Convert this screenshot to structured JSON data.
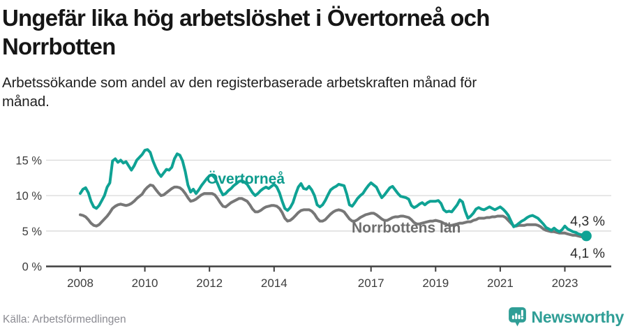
{
  "header": {
    "title": "Ungefär lika hög arbetslöshet i Övertorneå och\nNorrbotten",
    "subtitle": "Arbetssökande som andel av den registerbaserade arbetskraften månad för\nmånad."
  },
  "footer": {
    "source": "Källa: Arbetsförmedlingen",
    "brand": "Newsworthy",
    "brand_color": "#2f9e96"
  },
  "chart_data": {
    "type": "line",
    "title": "Ungefär lika hög arbetslöshet i Övertorneå och Norrbotten",
    "subtitle": "Arbetssökande som andel av den registerbaserade arbetskraften månad för månad.",
    "x_unit": "month",
    "x_start_year": 2008,
    "points_per_year": 12,
    "x_end": "2023-09",
    "xlim": [
      2008,
      2023.75
    ],
    "ylim": [
      0,
      17
    ],
    "grid": "horizontal",
    "legend": "inline-labels",
    "x_ticks": [
      {
        "value": 2008,
        "label": "2008"
      },
      {
        "value": 2010,
        "label": "2010"
      },
      {
        "value": 2012,
        "label": "2012"
      },
      {
        "value": 2014,
        "label": "2014"
      },
      {
        "value": 2017,
        "label": "2017"
      },
      {
        "value": 2019,
        "label": "2019"
      },
      {
        "value": 2021,
        "label": "2021"
      },
      {
        "value": 2023,
        "label": "2023"
      }
    ],
    "y_ticks": [
      {
        "value": 0,
        "label": "0 %"
      },
      {
        "value": 5,
        "label": "5 %"
      },
      {
        "value": 10,
        "label": "10 %"
      },
      {
        "value": 15,
        "label": "15 %"
      }
    ],
    "series": [
      {
        "name": "Övertorneå",
        "color": "#0fa294",
        "label_color": "#0d9b8d",
        "end_label": "4,3 %",
        "end_value": 4.3,
        "values": [
          10.3,
          10.9,
          11.1,
          10.4,
          9.2,
          8.4,
          8.2,
          8.6,
          9.3,
          10.0,
          11.2,
          11.8,
          14.9,
          15.2,
          14.7,
          15.0,
          14.6,
          14.8,
          14.2,
          13.6,
          14.2,
          15.0,
          15.4,
          15.8,
          16.4,
          16.5,
          16.1,
          14.9,
          14.0,
          13.2,
          12.7,
          13.2,
          13.7,
          13.6,
          14.0,
          15.2,
          15.9,
          15.7,
          14.9,
          13.4,
          11.5,
          10.5,
          10.9,
          10.3,
          10.8,
          11.4,
          11.9,
          12.4,
          12.8,
          12.9,
          12.5,
          11.7,
          10.8,
          10.1,
          10.3,
          10.7,
          11.0,
          11.4,
          11.7,
          12.0,
          12.1,
          11.9,
          11.6,
          11.0,
          10.4,
          10.0,
          10.3,
          10.7,
          11.0,
          11.2,
          11.0,
          11.3,
          11.6,
          11.2,
          10.4,
          9.2,
          8.2,
          7.9,
          8.3,
          9.0,
          10.2,
          11.2,
          11.7,
          11.0,
          10.9,
          11.3,
          10.8,
          10.0,
          8.7,
          8.4,
          8.7,
          9.3,
          10.1,
          10.8,
          11.1,
          11.3,
          11.6,
          11.5,
          11.4,
          10.2,
          8.7,
          8.5,
          9.0,
          9.6,
          10.0,
          10.3,
          10.9,
          11.4,
          11.8,
          11.5,
          11.2,
          10.4,
          9.7,
          10.1,
          10.6,
          11.1,
          11.3,
          10.8,
          10.3,
          9.9,
          9.8,
          9.7,
          9.5,
          8.6,
          8.3,
          8.5,
          8.8,
          9.0,
          8.7,
          9.0,
          9.2,
          9.2,
          9.2,
          9.3,
          8.9,
          8.0,
          7.7,
          7.8,
          7.7,
          8.2,
          8.7,
          9.4,
          9.1,
          7.8,
          6.8,
          7.1,
          7.5,
          8.1,
          8.3,
          8.1,
          8.0,
          8.2,
          8.4,
          8.2,
          8.0,
          8.2,
          8.4,
          8.1,
          7.7,
          7.2,
          6.4,
          5.6,
          5.8,
          6.1,
          6.4,
          6.6,
          6.9,
          7.1,
          7.2,
          7.0,
          6.8,
          6.4,
          6.0,
          5.5,
          5.3,
          5.1,
          5.4,
          5.1,
          4.9,
          5.2,
          5.7,
          5.3,
          5.1,
          4.9,
          4.8,
          4.6,
          4.5,
          4.4,
          4.3
        ]
      },
      {
        "name": "Norrbottens län",
        "color": "#777777",
        "label_color": "#6e6e6e",
        "end_label": "4,1 %",
        "end_value": 4.1,
        "values": [
          7.3,
          7.2,
          7.0,
          6.6,
          6.1,
          5.8,
          5.7,
          5.9,
          6.3,
          6.7,
          7.1,
          7.6,
          8.2,
          8.5,
          8.7,
          8.8,
          8.7,
          8.6,
          8.7,
          8.9,
          9.2,
          9.6,
          9.9,
          10.2,
          10.8,
          11.2,
          11.5,
          11.4,
          10.9,
          10.4,
          10.0,
          10.1,
          10.4,
          10.7,
          11.0,
          11.2,
          11.2,
          11.1,
          10.8,
          10.3,
          9.7,
          9.2,
          9.3,
          9.5,
          9.8,
          10.1,
          10.3,
          10.3,
          10.3,
          10.3,
          10.1,
          9.6,
          9.0,
          8.5,
          8.4,
          8.7,
          9.0,
          9.2,
          9.4,
          9.6,
          9.6,
          9.4,
          9.2,
          8.7,
          8.1,
          7.7,
          7.7,
          7.9,
          8.2,
          8.4,
          8.5,
          8.6,
          8.6,
          8.5,
          8.2,
          7.6,
          6.8,
          6.4,
          6.5,
          6.8,
          7.2,
          7.6,
          7.9,
          8.0,
          8.0,
          8.0,
          7.8,
          7.4,
          6.8,
          6.4,
          6.4,
          6.6,
          7.0,
          7.4,
          7.7,
          7.9,
          8.0,
          7.9,
          7.7,
          7.2,
          6.7,
          6.4,
          6.4,
          6.6,
          6.9,
          7.1,
          7.3,
          7.4,
          7.5,
          7.5,
          7.3,
          7.0,
          6.7,
          6.5,
          6.5,
          6.7,
          6.9,
          7.0,
          7.0,
          7.1,
          7.1,
          7.0,
          6.9,
          6.6,
          6.2,
          6.0,
          6.0,
          6.1,
          6.2,
          6.3,
          6.4,
          6.4,
          6.5,
          6.4,
          6.3,
          6.1,
          5.9,
          5.8,
          5.8,
          5.9,
          6.0,
          6.1,
          6.1,
          6.2,
          6.3,
          6.3,
          6.5,
          6.6,
          6.8,
          6.8,
          6.8,
          6.9,
          6.9,
          7.0,
          7.0,
          7.1,
          7.1,
          7.1,
          6.9,
          6.5,
          6.1,
          5.7,
          5.7,
          5.8,
          5.8,
          5.8,
          5.9,
          5.9,
          5.9,
          5.9,
          5.8,
          5.6,
          5.3,
          5.1,
          5.0,
          4.9,
          4.9,
          4.8,
          4.7,
          4.7,
          4.7,
          4.6,
          4.5,
          4.4,
          4.4,
          4.3,
          4.2,
          4.2,
          4.1
        ]
      }
    ]
  }
}
